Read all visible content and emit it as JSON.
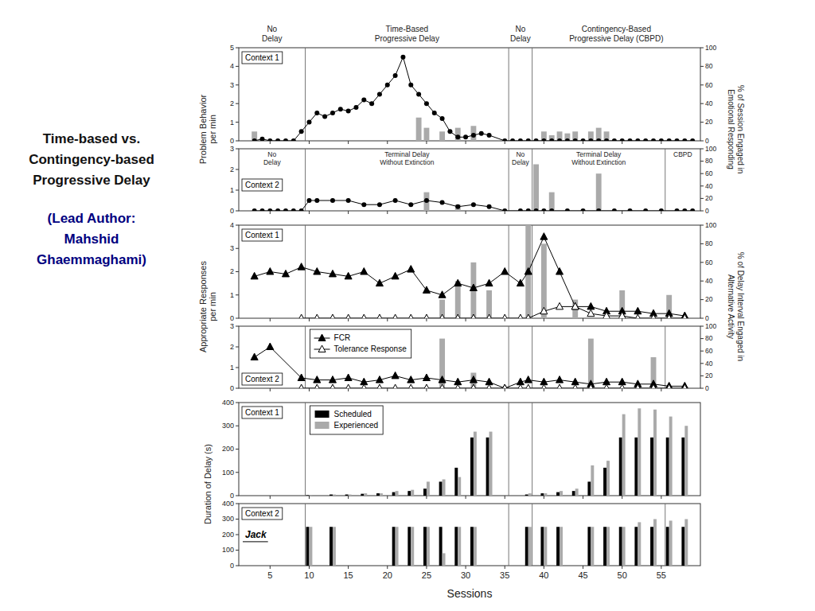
{
  "chart_data": [
    {
      "type": "line",
      "title": "Time-based vs.\nContingency-based\nProgressive Delay",
      "subtitle": "(Lead Author:\nMahshid\nGhaemmaghami)",
      "y_label": "Problem Behavior\nper min",
      "y2_label": "% of Session Engaged in\nEmotional Responding",
      "annotations": [
        "Context 1"
      ],
      "phase_labels": [
        "No\nDelay",
        "Time-Based\nProgressive Delay",
        "No\nDelay",
        "Contingency-Based\nProgressive Delay (CBPD)"
      ],
      "phase_lines": [
        9.5,
        35.5,
        38.5
      ],
      "xlim": [
        1,
        60
      ],
      "xticks": [
        5,
        10,
        15,
        20,
        25,
        30,
        35,
        40,
        45,
        50,
        55
      ],
      "ylim": [
        0,
        5
      ],
      "yticks": [
        0,
        1,
        2,
        3,
        4,
        5
      ],
      "y2lim": [
        0,
        100
      ],
      "y2ticks": [
        0,
        20,
        40,
        60,
        80,
        100
      ],
      "tick_labels": "y",
      "grid": false,
      "series": [
        {
          "type": "bar",
          "axis": "y2",
          "color": "#aaaaaa",
          "x": [
            3,
            10,
            24,
            25,
            27,
            29,
            31,
            36,
            40,
            41,
            42,
            43,
            44,
            46,
            47,
            48
          ],
          "values": [
            10,
            0,
            25,
            14,
            10,
            14,
            16,
            0,
            10,
            6,
            10,
            8,
            10,
            10,
            14,
            10
          ]
        },
        {
          "type": "line",
          "color": "black",
          "marker": "circle",
          "x": [
            3,
            4,
            5,
            6,
            7,
            8,
            9,
            10,
            11,
            12,
            13,
            14,
            15,
            16,
            17,
            18,
            19,
            20,
            21,
            22,
            23,
            24,
            25,
            26,
            27,
            28,
            29,
            30,
            31,
            32,
            33,
            35,
            36,
            37,
            38,
            39,
            40,
            41,
            42,
            43,
            44,
            45,
            46,
            47,
            48,
            49,
            50,
            51,
            52,
            53,
            54,
            55,
            56,
            57,
            58,
            59
          ],
          "values": [
            0,
            0.1,
            0,
            0,
            0,
            0,
            0.5,
            1.0,
            1.5,
            1.3,
            1.5,
            1.7,
            1.6,
            1.8,
            2.2,
            2.0,
            2.5,
            3.0,
            3.5,
            4.5,
            3.0,
            2.5,
            2.0,
            1.5,
            1.2,
            0.5,
            0.2,
            0.2,
            0.3,
            0.4,
            0.3,
            0,
            0,
            0,
            0,
            0,
            0,
            0,
            0,
            0,
            0,
            0,
            0,
            0,
            0,
            0,
            0,
            0,
            0,
            0,
            0,
            0,
            0,
            0,
            0,
            0
          ]
        }
      ]
    },
    {
      "type": "line",
      "annotations": [
        "Context 2"
      ],
      "phase_labels": [
        "No\nDelay",
        "Terminal Delay\nWithout Extinction",
        "No\nDelay",
        "Terminal Delay\nWithout Extinction",
        "CBPD"
      ],
      "phase_lines": [
        9.5,
        35.5,
        38.5,
        55.5
      ],
      "xlim": [
        1,
        60
      ],
      "xticks": [
        5,
        10,
        15,
        20,
        25,
        30,
        35,
        40,
        45,
        50,
        55
      ],
      "ylim": [
        0,
        3
      ],
      "yticks": [
        0,
        1,
        2,
        3
      ],
      "y2lim": [
        0,
        100
      ],
      "y2ticks": [
        0,
        20,
        40,
        60,
        80,
        100
      ],
      "tick_labels": "y",
      "grid": false,
      "series": [
        {
          "type": "bar",
          "axis": "y2",
          "color": "#aaaaaa",
          "x": [
            25,
            29,
            39,
            41,
            47
          ],
          "values": [
            30,
            10,
            75,
            30,
            60
          ]
        },
        {
          "type": "line",
          "color": "black",
          "marker": "circle",
          "x": [
            3,
            4,
            5,
            6,
            7,
            8,
            9,
            10,
            11,
            13,
            15,
            17,
            19,
            21,
            23,
            25,
            27,
            29,
            31,
            33,
            35,
            37,
            38,
            39,
            40,
            41,
            43,
            45,
            47,
            49,
            51,
            53,
            55,
            57,
            58,
            59
          ],
          "values": [
            0,
            0,
            0,
            0,
            0,
            0,
            0,
            0.5,
            0.5,
            0.5,
            0.5,
            0.3,
            0.3,
            0.5,
            0.3,
            0.5,
            0.4,
            0.2,
            0.3,
            0.2,
            0,
            0,
            0,
            0,
            0,
            0,
            0,
            0,
            0,
            0,
            0,
            0,
            0,
            0,
            0,
            0
          ]
        }
      ]
    },
    {
      "type": "line",
      "y_label": "Appropriate Responses\nper min",
      "y2_label": "% of Delay Interval Engaged in\nAlternative Activity",
      "annotations": [
        "Context 1"
      ],
      "phase_lines": [
        9.5,
        35.5,
        38.5
      ],
      "xlim": [
        1,
        60
      ],
      "xticks": [
        5,
        10,
        15,
        20,
        25,
        30,
        35,
        40,
        45,
        50,
        55
      ],
      "ylim": [
        0,
        4
      ],
      "yticks": [
        0,
        1,
        2,
        3,
        4
      ],
      "y2lim": [
        0,
        100
      ],
      "y2ticks": [
        0,
        20,
        40,
        60,
        80,
        100
      ],
      "tick_labels": "y",
      "grid": false,
      "series": [
        {
          "type": "bar",
          "axis": "y2",
          "color": "#aaaaaa",
          "x": [
            27,
            29,
            31,
            33,
            38,
            40,
            44,
            50,
            56
          ],
          "values": [
            20,
            40,
            60,
            30,
            100,
            80,
            20,
            30,
            25
          ]
        },
        {
          "type": "line",
          "color": "black",
          "marker": "triangle",
          "x": [
            3,
            5,
            7,
            9,
            11,
            13,
            15,
            17,
            19,
            21,
            23,
            25,
            27,
            29,
            31,
            33,
            35,
            37,
            38,
            40,
            42,
            44,
            46,
            48,
            50,
            52,
            54,
            56,
            58
          ],
          "values": [
            1.8,
            2.0,
            1.9,
            2.2,
            2.0,
            1.9,
            1.8,
            2.0,
            1.5,
            1.8,
            2.1,
            1.2,
            1.0,
            1.5,
            1.3,
            1.5,
            2.0,
            1.5,
            2.0,
            3.5,
            2.0,
            0.5,
            0.5,
            0.3,
            0.3,
            0.3,
            0.2,
            0.2,
            0.1
          ]
        },
        {
          "type": "line",
          "color": "black",
          "marker": "open-triangle",
          "x": [
            9,
            11,
            13,
            15,
            17,
            19,
            21,
            23,
            25,
            27,
            29,
            31,
            33,
            35,
            37,
            38,
            40,
            42,
            44,
            46,
            48,
            50,
            52,
            54,
            56,
            58
          ],
          "values": [
            0,
            0,
            0,
            0,
            0,
            0,
            0,
            0,
            0,
            0,
            0,
            0,
            0,
            0,
            0,
            0,
            0.3,
            0.5,
            0.5,
            0.2,
            0.1,
            0.1,
            0,
            0,
            0,
            0
          ]
        }
      ]
    },
    {
      "type": "line",
      "annotations": [
        "Context 2"
      ],
      "phase_lines": [
        9.5,
        35.5,
        38.5,
        55.5
      ],
      "xlim": [
        1,
        60
      ],
      "xticks": [
        5,
        10,
        15,
        20,
        25,
        30,
        35,
        40,
        45,
        50,
        55
      ],
      "ylim": [
        0,
        3
      ],
      "yticks": [
        0,
        1,
        2,
        3
      ],
      "y2lim": [
        0,
        100
      ],
      "y2ticks": [
        0,
        20,
        40,
        60,
        80,
        100
      ],
      "tick_labels": "y",
      "grid": false,
      "legend": "upper left",
      "series": [
        {
          "type": "bar",
          "axis": "y2",
          "color": "#aaaaaa",
          "x": [
            27,
            31,
            46,
            54
          ],
          "values": [
            80,
            25,
            80,
            50
          ]
        },
        {
          "type": "line",
          "name": "FCR",
          "color": "black",
          "marker": "triangle",
          "x": [
            3,
            5,
            9,
            11,
            13,
            15,
            17,
            19,
            21,
            23,
            25,
            27,
            29,
            31,
            33,
            35,
            37,
            38,
            40,
            42,
            44,
            46,
            48,
            50,
            52,
            54,
            56,
            58
          ],
          "values": [
            1.5,
            2.0,
            0.5,
            0.4,
            0.4,
            0.5,
            0.3,
            0.4,
            0.6,
            0.4,
            0.5,
            0.4,
            0.3,
            0.4,
            0.3,
            0,
            0.3,
            0.4,
            0.3,
            0.4,
            0.3,
            0.2,
            0.3,
            0.3,
            0.2,
            0.2,
            0.1,
            0.1
          ]
        },
        {
          "type": "line",
          "name": "Tolerance Response",
          "color": "black",
          "marker": "open-triangle",
          "x": [
            9,
            11,
            13,
            15,
            17,
            19,
            21,
            23,
            25,
            27,
            29,
            31,
            33,
            35,
            37,
            38,
            40,
            42,
            44,
            46,
            48,
            50,
            52,
            54,
            56,
            58
          ],
          "values": [
            0,
            0,
            0,
            0,
            0,
            0,
            0,
            0,
            0,
            0,
            0,
            0,
            0,
            0,
            0,
            0,
            0,
            0,
            0,
            0,
            0,
            0,
            0,
            0,
            0,
            0
          ]
        }
      ]
    },
    {
      "type": "bar",
      "y_label": "Duration of Delay (s)",
      "annotations": [
        "Context 1"
      ],
      "phase_lines": [
        9.5,
        35.5,
        38.5
      ],
      "xlim": [
        1,
        60
      ],
      "xticks": [
        5,
        10,
        15,
        20,
        25,
        30,
        35,
        40,
        45,
        50,
        55
      ],
      "ylim": [
        0,
        400
      ],
      "yticks": [
        0,
        100,
        200,
        300,
        400
      ],
      "tick_labels": "y",
      "grid": false,
      "legend": "upper left",
      "series": [
        {
          "name": "Scheduled",
          "color": "black",
          "x": [
            10,
            13,
            15,
            17,
            19,
            21,
            23,
            25,
            27,
            29,
            31,
            33,
            38,
            40,
            42,
            44,
            46,
            48,
            50,
            52,
            54,
            56,
            58
          ],
          "values": [
            2,
            5,
            5,
            8,
            10,
            15,
            20,
            30,
            60,
            120,
            250,
            250,
            5,
            10,
            15,
            20,
            60,
            120,
            250,
            250,
            250,
            250,
            250
          ]
        },
        {
          "name": "Experienced",
          "color": "#aaaaaa",
          "x": [
            10,
            13,
            15,
            17,
            19,
            21,
            23,
            25,
            27,
            29,
            31,
            33,
            38,
            40,
            42,
            44,
            46,
            48,
            50,
            52,
            54,
            56,
            58
          ],
          "values": [
            2,
            5,
            5,
            10,
            10,
            20,
            25,
            60,
            70,
            80,
            275,
            275,
            10,
            10,
            20,
            30,
            130,
            150,
            350,
            375,
            370,
            340,
            300
          ]
        }
      ]
    },
    {
      "type": "bar",
      "x_label": "Sessions",
      "annotations": [
        "Context 2",
        "Jack"
      ],
      "phase_lines": [
        9.5,
        35.5,
        38.5,
        55.5
      ],
      "xlim": [
        1,
        60
      ],
      "xticks": [
        5,
        10,
        15,
        20,
        25,
        30,
        35,
        40,
        45,
        50,
        55
      ],
      "ylim": [
        0,
        400
      ],
      "yticks": [
        0,
        100,
        200,
        300,
        400
      ],
      "grid": false,
      "series": [
        {
          "color": "black",
          "x": [
            10,
            13,
            21,
            23,
            25,
            27,
            29,
            31,
            38,
            40,
            42,
            46,
            48,
            50,
            52,
            54,
            56,
            58
          ],
          "values": [
            250,
            250,
            250,
            250,
            250,
            250,
            250,
            250,
            250,
            250,
            250,
            250,
            250,
            250,
            250,
            250,
            250,
            250
          ]
        },
        {
          "color": "#aaaaaa",
          "x": [
            10,
            13,
            21,
            23,
            25,
            27,
            29,
            31,
            38,
            40,
            42,
            46,
            48,
            50,
            52,
            54,
            56,
            58
          ],
          "values": [
            250,
            250,
            250,
            250,
            250,
            80,
            250,
            250,
            250,
            250,
            250,
            250,
            250,
            250,
            280,
            300,
            290,
            300
          ]
        }
      ]
    }
  ]
}
